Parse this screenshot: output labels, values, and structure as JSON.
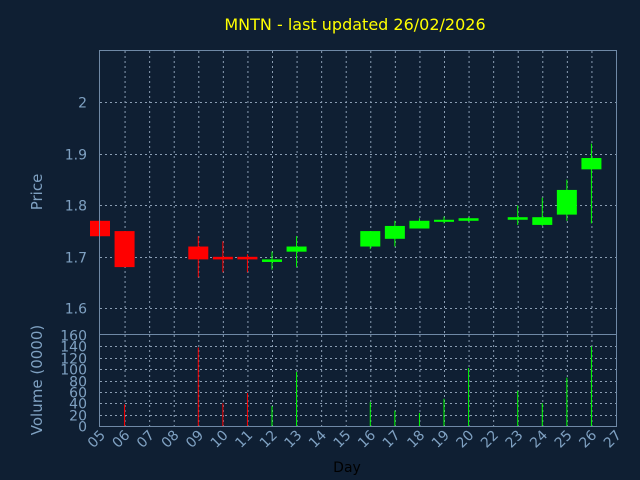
{
  "chart_data": {
    "type": "candlestick",
    "title": "MNTN - last updated 26/02/2026",
    "xlabel": "Day",
    "price_panel": {
      "ylabel": "Price",
      "ylim": [
        1.55,
        2.1
      ],
      "yticks": [
        "1.6",
        "1.7",
        "1.8",
        "1.9",
        "2"
      ],
      "grid": true
    },
    "volume_panel": {
      "ylabel": "Volume (0000)",
      "ylim": [
        0,
        160
      ],
      "yticks": [
        "0",
        "20",
        "40",
        "60",
        "80",
        "100",
        "120",
        "140",
        "160"
      ],
      "grid": true
    },
    "x_ticks": [
      "05",
      "06",
      "07",
      "08",
      "09",
      "10",
      "11",
      "12",
      "13",
      "14",
      "15",
      "16",
      "17",
      "18",
      "19",
      "20",
      "22",
      "23",
      "24",
      "25",
      "26",
      "27"
    ],
    "up_color": "#00ff00",
    "down_color": "#ff0000",
    "candles": [
      {
        "x": 0,
        "open": 1.77,
        "close": 1.74,
        "high": 1.77,
        "low": 1.74,
        "volume": 0
      },
      {
        "x": 1,
        "open": 1.75,
        "close": 1.68,
        "high": 1.75,
        "low": 1.68,
        "volume": 38
      },
      {
        "x": 4,
        "open": 1.72,
        "close": 1.695,
        "high": 1.74,
        "low": 1.66,
        "volume": 138
      },
      {
        "x": 5,
        "open": 1.7,
        "close": 1.695,
        "high": 1.73,
        "low": 1.67,
        "volume": 40
      },
      {
        "x": 6,
        "open": 1.7,
        "close": 1.695,
        "high": 1.705,
        "low": 1.67,
        "volume": 58
      },
      {
        "x": 7,
        "open": 1.69,
        "close": 1.695,
        "high": 1.71,
        "low": 1.675,
        "volume": 35
      },
      {
        "x": 8,
        "open": 1.71,
        "close": 1.72,
        "high": 1.74,
        "low": 1.68,
        "volume": 95
      },
      {
        "x": 11,
        "open": 1.72,
        "close": 1.75,
        "high": 1.75,
        "low": 1.715,
        "volume": 42
      },
      {
        "x": 12,
        "open": 1.735,
        "close": 1.76,
        "high": 1.77,
        "low": 1.72,
        "volume": 27
      },
      {
        "x": 13,
        "open": 1.755,
        "close": 1.77,
        "high": 1.775,
        "low": 1.755,
        "volume": 23
      },
      {
        "x": 14,
        "open": 1.768,
        "close": 1.772,
        "high": 1.778,
        "low": 1.765,
        "volume": 48
      },
      {
        "x": 15,
        "open": 1.77,
        "close": 1.775,
        "high": 1.777,
        "low": 1.768,
        "volume": 102
      },
      {
        "x": 17,
        "open": 1.772,
        "close": 1.777,
        "high": 1.8,
        "low": 1.762,
        "volume": 62
      },
      {
        "x": 18,
        "open": 1.762,
        "close": 1.777,
        "high": 1.815,
        "low": 1.76,
        "volume": 40
      },
      {
        "x": 19,
        "open": 1.782,
        "close": 1.83,
        "high": 1.85,
        "low": 1.77,
        "volume": 85
      },
      {
        "x": 20,
        "open": 1.87,
        "close": 1.892,
        "high": 1.92,
        "low": 1.765,
        "volume": 140
      }
    ]
  }
}
